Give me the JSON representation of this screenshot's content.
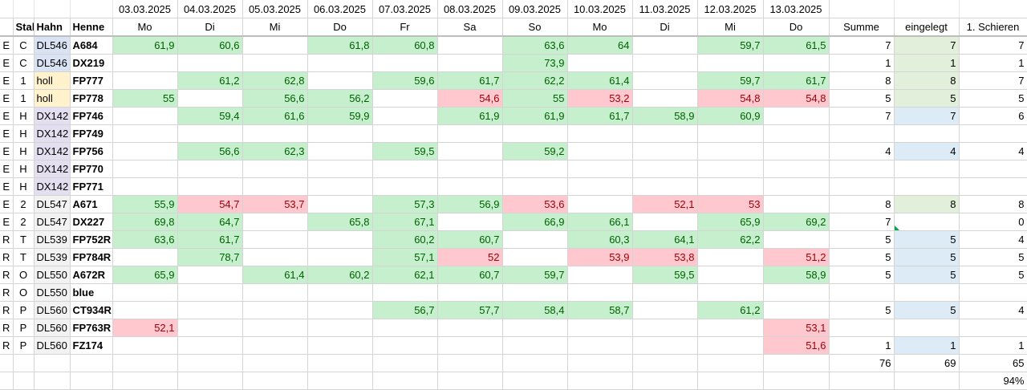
{
  "sheet": {
    "dates": [
      "03.03.2025",
      "04.03.2025",
      "05.03.2025",
      "06.03.2025",
      "07.03.2025",
      "08.03.2025",
      "09.03.2025",
      "10.03.2025",
      "11.03.2025",
      "12.03.2025",
      "13.03.2025"
    ],
    "weekdays": [
      "Mo",
      "Di",
      "Mi",
      "Do",
      "Fr",
      "Sa",
      "So",
      "Mo",
      "Di",
      "Mi",
      "Do"
    ],
    "headers": {
      "stall": "Stall",
      "hahn": "Hahn",
      "henne": "Henne",
      "summe": "Summe",
      "eingelegt": "eingelegt",
      "schieren": "1. Schieren"
    },
    "rows": [
      {
        "a": "E",
        "stall": "C",
        "hahn": "DL546",
        "hahn_color": "blue",
        "henne": "A684",
        "cells": [
          "61,9",
          "60,6",
          "",
          "61,8",
          "60,8",
          "",
          "63,6",
          "64",
          "",
          "59,7",
          "61,5"
        ],
        "status": [
          "g",
          "g",
          "",
          "g",
          "g",
          "",
          "g",
          "g",
          "",
          "g",
          "g"
        ],
        "summe": "7",
        "eingelegt": "7",
        "ein_color": "green",
        "schieren": "7"
      },
      {
        "a": "E",
        "stall": "C",
        "hahn": "DL546",
        "hahn_color": "blue",
        "henne": "DX219",
        "cells": [
          "",
          "",
          "",
          "",
          "",
          "",
          "73,9",
          "",
          "",
          "",
          ""
        ],
        "status": [
          "",
          "",
          "",
          "",
          "",
          "",
          "g",
          "",
          "",
          "",
          ""
        ],
        "summe": "1",
        "eingelegt": "1",
        "ein_color": "green",
        "schieren": "1"
      },
      {
        "a": "E",
        "stall": "1",
        "hahn": "holl",
        "hahn_color": "yellow",
        "henne": "FP777",
        "cells": [
          "",
          "61,2",
          "62,8",
          "",
          "59,6",
          "61,7",
          "62,2",
          "61,4",
          "",
          "59,7",
          "61,7"
        ],
        "status": [
          "",
          "g",
          "g",
          "",
          "g",
          "g",
          "g",
          "g",
          "",
          "g",
          "g"
        ],
        "summe": "8",
        "eingelegt": "8",
        "ein_color": "green",
        "schieren": "7"
      },
      {
        "a": "E",
        "stall": "1",
        "hahn": "holl",
        "hahn_color": "yellow",
        "henne": "FP778",
        "cells": [
          "55",
          "",
          "56,6",
          "56,2",
          "",
          "54,6",
          "55",
          "53,2",
          "",
          "54,8",
          "54,8"
        ],
        "status": [
          "g",
          "",
          "g",
          "g",
          "",
          "r",
          "g",
          "r",
          "",
          "r",
          "r"
        ],
        "summe": "5",
        "eingelegt": "5",
        "ein_color": "green",
        "schieren": "5"
      },
      {
        "a": "E",
        "stall": "H",
        "hahn": "DX142",
        "hahn_color": "purple",
        "henne": "FP746",
        "cells": [
          "",
          "59,4",
          "61,6",
          "59,9",
          "",
          "61,9",
          "61,9",
          "61,7",
          "58,9",
          "60,9",
          ""
        ],
        "status": [
          "",
          "g",
          "g",
          "g",
          "",
          "g",
          "g",
          "g",
          "g",
          "g",
          ""
        ],
        "summe": "7",
        "eingelegt": "7",
        "ein_color": "blue",
        "schieren": "6"
      },
      {
        "a": "E",
        "stall": "H",
        "hahn": "DX142",
        "hahn_color": "purple",
        "henne": "FP749",
        "cells": [
          "",
          "",
          "",
          "",
          "",
          "",
          "",
          "",
          "",
          "",
          ""
        ],
        "status": [
          "",
          "",
          "",
          "",
          "",
          "",
          "",
          "",
          "",
          "",
          ""
        ],
        "summe": "",
        "eingelegt": "",
        "ein_color": "",
        "schieren": ""
      },
      {
        "a": "E",
        "stall": "H",
        "hahn": "DX142",
        "hahn_color": "purple",
        "henne": "FP756",
        "cells": [
          "",
          "56,6",
          "62,3",
          "",
          "59,5",
          "",
          "59,2",
          "",
          "",
          "",
          ""
        ],
        "status": [
          "",
          "g",
          "g",
          "",
          "g",
          "",
          "g",
          "",
          "",
          "",
          ""
        ],
        "summe": "4",
        "eingelegt": "4",
        "ein_color": "blue",
        "schieren": "4"
      },
      {
        "a": "E",
        "stall": "H",
        "hahn": "DX142",
        "hahn_color": "purple",
        "henne": "FP770",
        "cells": [
          "",
          "",
          "",
          "",
          "",
          "",
          "",
          "",
          "",
          "",
          ""
        ],
        "status": [
          "",
          "",
          "",
          "",
          "",
          "",
          "",
          "",
          "",
          "",
          ""
        ],
        "summe": "",
        "eingelegt": "",
        "ein_color": "",
        "schieren": ""
      },
      {
        "a": "E",
        "stall": "H",
        "hahn": "DX142",
        "hahn_color": "purple",
        "henne": "FP771",
        "cells": [
          "",
          "",
          "",
          "",
          "",
          "",
          "",
          "",
          "",
          "",
          ""
        ],
        "status": [
          "",
          "",
          "",
          "",
          "",
          "",
          "",
          "",
          "",
          "",
          ""
        ],
        "summe": "",
        "eingelegt": "",
        "ein_color": "",
        "schieren": ""
      },
      {
        "a": "E",
        "stall": "2",
        "hahn": "DL547",
        "hahn_color": "plain",
        "henne": "A671",
        "cells": [
          "55,9",
          "54,7",
          "53,7",
          "",
          "57,3",
          "56,9",
          "53,6",
          "",
          "52,1",
          "53",
          ""
        ],
        "status": [
          "g",
          "r",
          "r",
          "",
          "g",
          "g",
          "r",
          "",
          "r",
          "r",
          ""
        ],
        "summe": "8",
        "eingelegt": "8",
        "ein_color": "green",
        "schieren": "8"
      },
      {
        "a": "E",
        "stall": "2",
        "hahn": "DL547",
        "hahn_color": "plain",
        "henne": "DX227",
        "cells": [
          "69,8",
          "64,7",
          "",
          "65,8",
          "67,1",
          "",
          "66,9",
          "66,1",
          "",
          "65,9",
          "69,2"
        ],
        "status": [
          "g",
          "g",
          "",
          "g",
          "g",
          "",
          "g",
          "g",
          "",
          "g",
          "g"
        ],
        "summe": "7",
        "eingelegt": "",
        "ein_color": "",
        "schieren": "0"
      },
      {
        "a": "R",
        "stall": "T",
        "hahn": "DL539",
        "hahn_color": "plain",
        "henne": "FP752R",
        "cells": [
          "63,6",
          "61,7",
          "",
          "",
          "60,2",
          "60,7",
          "",
          "60,3",
          "64,1",
          "62,2",
          ""
        ],
        "status": [
          "g",
          "g",
          "",
          "",
          "g",
          "g",
          "",
          "g",
          "g",
          "g",
          ""
        ],
        "summe": "5",
        "eingelegt": "5",
        "ein_color": "blue",
        "schieren": "4"
      },
      {
        "a": "R",
        "stall": "T",
        "hahn": "DL539",
        "hahn_color": "plain",
        "henne": "FP784R",
        "cells": [
          "",
          "78,7",
          "",
          "",
          "57,1",
          "52",
          "",
          "53,9",
          "53,8",
          "",
          "51,2"
        ],
        "status": [
          "",
          "g",
          "",
          "",
          "g",
          "r",
          "",
          "r",
          "r",
          "",
          "r"
        ],
        "summe": "5",
        "eingelegt": "5",
        "ein_color": "blue",
        "schieren": "5"
      },
      {
        "a": "R",
        "stall": "O",
        "hahn": "DL550",
        "hahn_color": "plain",
        "henne": "A672R",
        "cells": [
          "65,9",
          "",
          "61,4",
          "60,2",
          "62,1",
          "60,7",
          "59,7",
          "",
          "59,5",
          "",
          "58,9"
        ],
        "status": [
          "g",
          "",
          "g",
          "g",
          "g",
          "g",
          "g",
          "",
          "g",
          "",
          "g"
        ],
        "summe": "5",
        "eingelegt": "5",
        "ein_color": "blue",
        "schieren": "5"
      },
      {
        "a": "R",
        "stall": "O",
        "hahn": "DL550",
        "hahn_color": "plain",
        "henne": "blue",
        "cells": [
          "",
          "",
          "",
          "",
          "",
          "",
          "",
          "",
          "",
          "",
          ""
        ],
        "status": [
          "",
          "",
          "",
          "",
          "",
          "",
          "",
          "",
          "",
          "",
          ""
        ],
        "summe": "",
        "eingelegt": "",
        "ein_color": "",
        "schieren": ""
      },
      {
        "a": "R",
        "stall": "P",
        "hahn": "DL560",
        "hahn_color": "plain",
        "henne": "CT934R",
        "cells": [
          "",
          "",
          "",
          "",
          "56,7",
          "57,7",
          "58,4",
          "58,7",
          "",
          "61,2",
          ""
        ],
        "status": [
          "",
          "",
          "",
          "",
          "g",
          "g",
          "g",
          "g",
          "",
          "g",
          ""
        ],
        "summe": "5",
        "eingelegt": "5",
        "ein_color": "blue",
        "schieren": "4"
      },
      {
        "a": "R",
        "stall": "P",
        "hahn": "DL560",
        "hahn_color": "plain",
        "henne": "FP763R",
        "cells": [
          "52,1",
          "",
          "",
          "",
          "",
          "",
          "",
          "",
          "",
          "",
          "53,1"
        ],
        "status": [
          "r",
          "",
          "",
          "",
          "",
          "",
          "",
          "",
          "",
          "",
          "r"
        ],
        "summe": "",
        "eingelegt": "",
        "ein_color": "",
        "schieren": ""
      },
      {
        "a": "R",
        "stall": "P",
        "hahn": "DL560",
        "hahn_color": "plain",
        "henne": "FZ174",
        "cells": [
          "",
          "",
          "",
          "",
          "",
          "",
          "",
          "",
          "",
          "",
          "51,6"
        ],
        "status": [
          "",
          "",
          "",
          "",
          "",
          "",
          "",
          "",
          "",
          "",
          "r"
        ],
        "summe": "1",
        "eingelegt": "1",
        "ein_color": "blue",
        "schieren": "1"
      }
    ],
    "totals": {
      "summe": "76",
      "eingelegt": "69",
      "schieren": "65",
      "percent": "94%"
    }
  }
}
